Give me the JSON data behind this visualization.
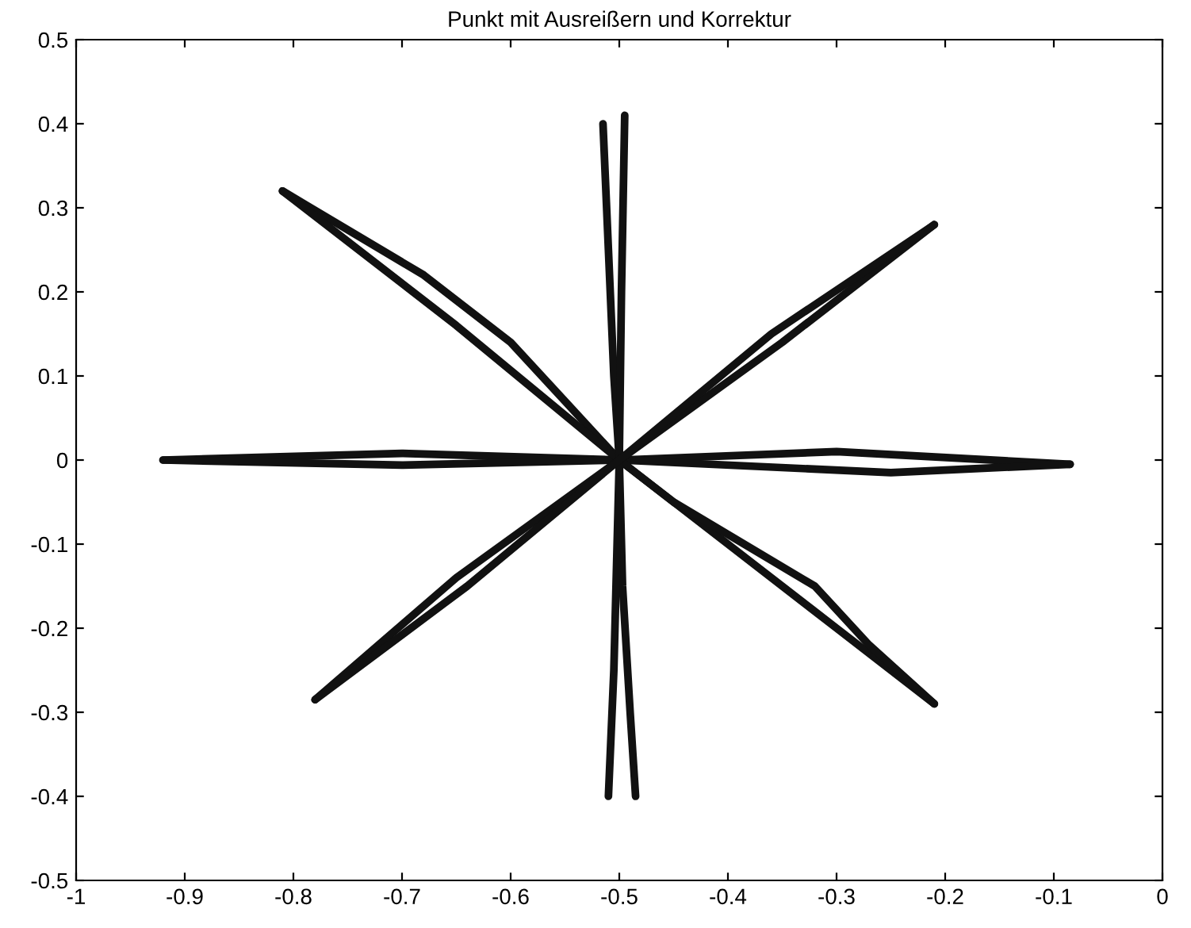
{
  "chart_data": {
    "type": "line",
    "title": "Punkt mit Ausreißern und Korrektur",
    "series": [
      {
        "color": "#111111",
        "x": [
          -0.92,
          -0.7,
          -0.5,
          -0.3,
          -0.085
        ],
        "values": [
          0,
          0.008,
          0,
          0.01,
          -0.005
        ]
      },
      {
        "color": "#111111",
        "x": [
          -0.92,
          -0.7,
          -0.5,
          -0.25,
          -0.085
        ],
        "values": [
          0,
          -0.006,
          0,
          -0.015,
          -0.005
        ]
      },
      {
        "color": "#111111",
        "x": [
          -0.81,
          -0.68,
          -0.6,
          -0.5,
          -0.4,
          -0.3,
          -0.21
        ],
        "values": [
          0.32,
          0.22,
          0.14,
          0,
          -0.1,
          -0.2,
          -0.29
        ]
      },
      {
        "color": "#111111",
        "x": [
          -0.81,
          -0.65,
          -0.5,
          -0.45,
          -0.32,
          -0.27,
          -0.21
        ],
        "values": [
          0.32,
          0.16,
          0,
          -0.05,
          -0.15,
          -0.22,
          -0.29
        ]
      },
      {
        "color": "#111111",
        "x": [
          -0.515,
          -0.51,
          -0.505,
          -0.5,
          -0.497,
          -0.49,
          -0.485
        ],
        "values": [
          0.4,
          0.25,
          0.1,
          0,
          -0.15,
          -0.3,
          -0.4
        ]
      },
      {
        "color": "#111111",
        "x": [
          -0.51,
          -0.505,
          -0.5,
          -0.498,
          -0.495
        ],
        "values": [
          -0.4,
          -0.25,
          0,
          0.2,
          0.41
        ]
      },
      {
        "color": "#111111",
        "x": [
          -0.78,
          -0.65,
          -0.5,
          -0.35,
          -0.21
        ],
        "values": [
          -0.285,
          -0.14,
          0,
          0.14,
          0.28
        ]
      },
      {
        "color": "#111111",
        "x": [
          -0.78,
          -0.64,
          -0.5,
          -0.36,
          -0.21
        ],
        "values": [
          -0.285,
          -0.15,
          0,
          0.15,
          0.28
        ]
      }
    ],
    "xlim": [
      -1,
      0
    ],
    "ylim": [
      -0.5,
      0.5
    ],
    "xticks": [
      -1,
      -0.9,
      -0.8,
      -0.7,
      -0.6,
      -0.5,
      -0.4,
      -0.3,
      -0.2,
      -0.1,
      0
    ],
    "yticks": [
      -0.5,
      -0.4,
      -0.3,
      -0.2,
      -0.1,
      0,
      0.1,
      0.2,
      0.3,
      0.4,
      0.5
    ],
    "grid": false,
    "legend": false,
    "marker": "none",
    "line_style": "solid"
  }
}
